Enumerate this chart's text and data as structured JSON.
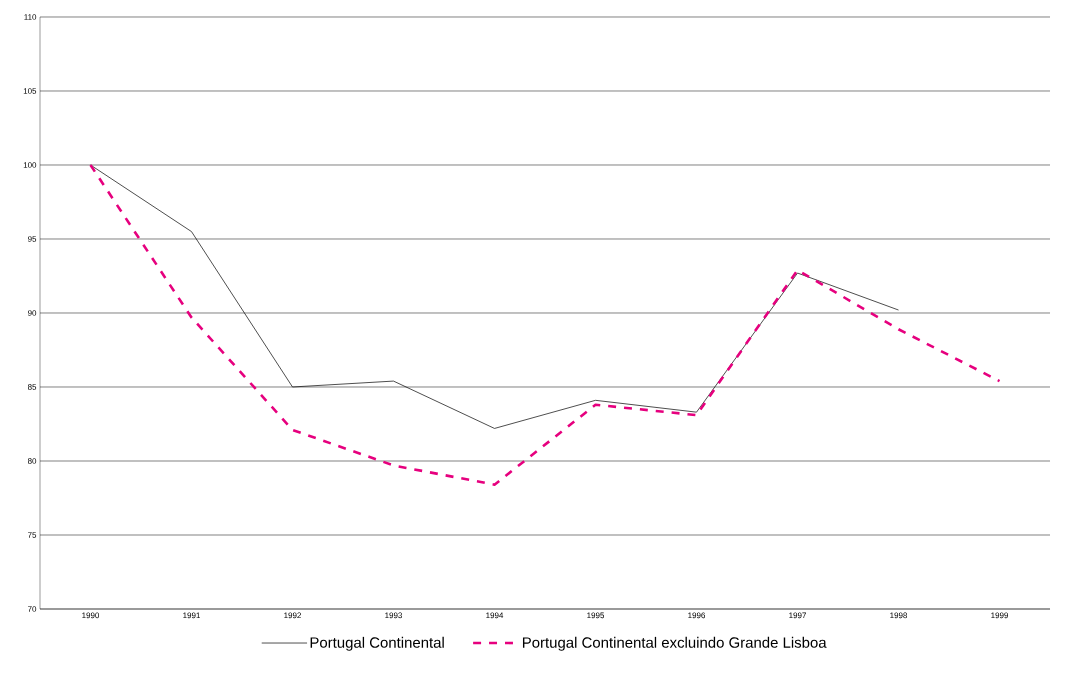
{
  "chart_data": {
    "type": "line",
    "categories": [
      "1990",
      "1991",
      "1992",
      "1993",
      "1994",
      "1995",
      "1996",
      "1997",
      "1998",
      "1999"
    ],
    "series": [
      {
        "name": "Portugal Continental",
        "color": "#000000",
        "line_style": "solid",
        "values": [
          100,
          95.5,
          85,
          85.4,
          82.2,
          84.1,
          83.3,
          92.7,
          90.2,
          null
        ]
      },
      {
        "name": "Portugal Continental excluindo Grande Lisboa",
        "color": "#e6007e",
        "line_style": "dashed",
        "values": [
          100,
          89.7,
          82.1,
          79.7,
          78.4,
          83.8,
          83.1,
          92.9,
          88.9,
          85.4
        ]
      }
    ],
    "ylim": [
      70,
      110
    ],
    "yticks": [
      70,
      75,
      80,
      85,
      90,
      95,
      100,
      105,
      110
    ],
    "grid": "y",
    "legend": "bottom",
    "marker": "none"
  }
}
